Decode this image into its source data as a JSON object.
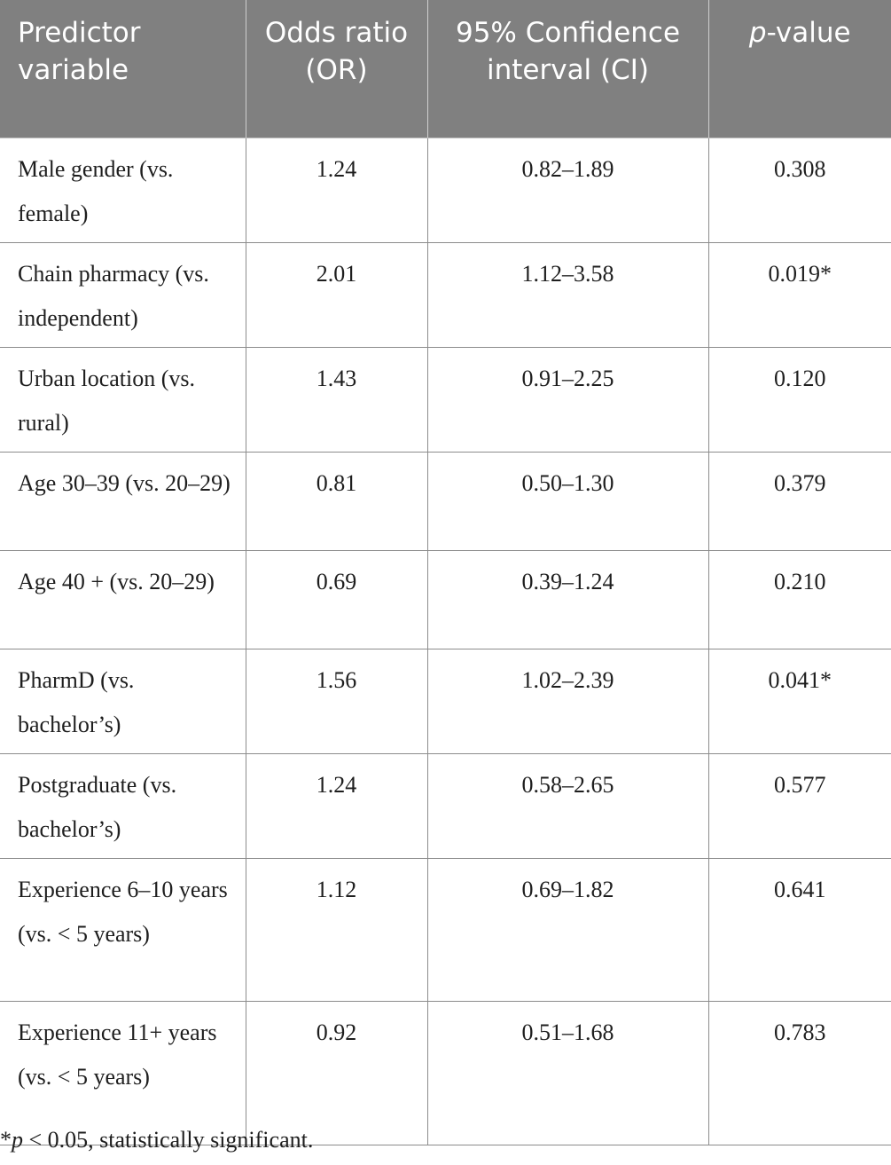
{
  "header": {
    "col1": "Predictor variable",
    "col2": "Odds ratio (OR)",
    "col3": "95% Confidence interval (CI)",
    "col4_italic": "p",
    "col4_rest": "-value"
  },
  "rows": [
    {
      "predictor": "Male gender (vs. female)",
      "or": "1.24",
      "ci": "0.82–1.89",
      "p": "0.308"
    },
    {
      "predictor": "Chain pharmacy (vs. independent)",
      "or": "2.01",
      "ci": "1.12–3.58",
      "p": "0.019*"
    },
    {
      "predictor": "Urban location (vs. rural)",
      "or": "1.43",
      "ci": "0.91–2.25",
      "p": "0.120"
    },
    {
      "predictor": "Age 30–39 (vs. 20–29)",
      "or": "0.81",
      "ci": "0.50–1.30",
      "p": "0.379"
    },
    {
      "predictor": "Age 40 + (vs. 20–29)",
      "or": "0.69",
      "ci": "0.39–1.24",
      "p": "0.210"
    },
    {
      "predictor": "PharmD (vs. bachelor’s)",
      "or": "1.56",
      "ci": "1.02–2.39",
      "p": "0.041*"
    },
    {
      "predictor": "Postgraduate (vs. bachelor’s)",
      "or": "1.24",
      "ci": "0.58–2.65",
      "p": "0.577"
    },
    {
      "predictor": "Experience 6–10 years (vs. < 5 years)",
      "or": "1.12",
      "ci": "0.69–1.82",
      "p": "0.641"
    },
    {
      "predictor": "Experience 11+ years (vs. < 5 years)",
      "or": "0.92",
      "ci": "0.51–1.68",
      "p": "0.783"
    }
  ],
  "footnote": {
    "star": "*",
    "p": "p",
    "text": " < 0.05, statistically significant."
  }
}
